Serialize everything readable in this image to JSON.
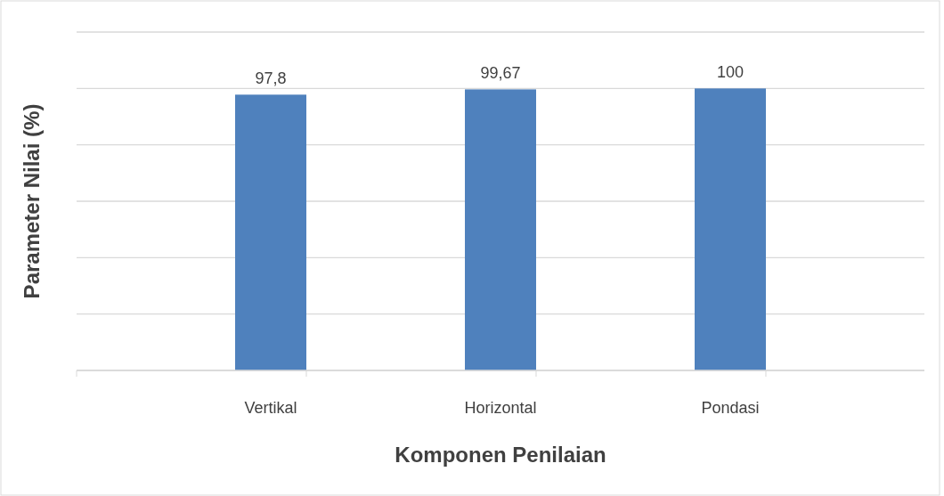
{
  "chart_data": {
    "type": "bar",
    "xlabel": "Komponen Penilaian",
    "ylabel": "Parameter Nilai (%)",
    "categories": [
      "Vertikal",
      "Horizontal",
      "Pondasi"
    ],
    "values": [
      97.8,
      99.67,
      100
    ],
    "value_labels": [
      "97,8",
      "99,67",
      "100"
    ],
    "color": "#4f81bd",
    "data_labels": true,
    "ylim": [
      0,
      120
    ],
    "yticks": [
      {
        "value": 0,
        "label": null
      },
      {
        "value": 20,
        "label": null
      },
      {
        "value": 40,
        "label": null
      },
      {
        "value": 60,
        "label": null
      },
      {
        "value": 80,
        "label": null
      },
      {
        "value": 100,
        "label": null
      },
      {
        "value": 120,
        "label": null
      }
    ],
    "grid": "y",
    "tick_labels": "x"
  }
}
